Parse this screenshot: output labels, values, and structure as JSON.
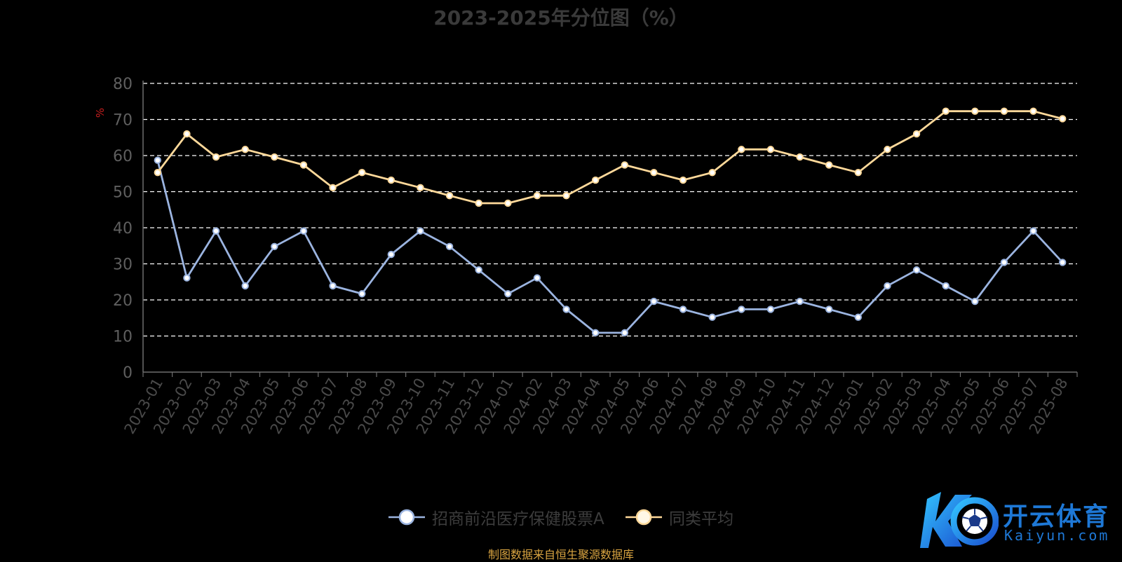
{
  "title": "2023-2025年分位图（%）",
  "source_note": "制图数据来自恒生聚源数据库",
  "watermark": {
    "text": "开云体育",
    "sub": "Kaiyun.com"
  },
  "colors": {
    "fund": "#9bb4e0",
    "avg": "#ffd99a",
    "grid": "#ffffff",
    "axis": "#6e6e6e",
    "unit": "#c81e1e"
  },
  "chart_data": {
    "type": "line",
    "title": "2023-2025年分位图（%）",
    "ylabel": "%",
    "ylim": [
      0,
      80
    ],
    "yticks": [
      0,
      10,
      20,
      30,
      40,
      50,
      60,
      70,
      80
    ],
    "grid": true,
    "legend_position": "bottom-center",
    "categories": [
      "2023-01",
      "2023-02",
      "2023-03",
      "2023-04",
      "2023-05",
      "2023-06",
      "2023-07",
      "2023-08",
      "2023-09",
      "2023-10",
      "2023-11",
      "2023-12",
      "2024-01",
      "2024-02",
      "2024-03",
      "2024-04",
      "2024-05",
      "2024-06",
      "2024-07",
      "2024-08",
      "2024-09",
      "2024-10",
      "2024-11",
      "2024-12",
      "2025-01",
      "2025-02",
      "2025-03",
      "2025-04",
      "2025-05",
      "2025-06",
      "2025-07",
      "2025-08"
    ],
    "series": [
      {
        "name": "招商前沿医疗保健股票A",
        "color": "#9bb4e0",
        "values": [
          58.7,
          26.1,
          39.1,
          23.9,
          34.8,
          39.1,
          23.9,
          21.7,
          32.6,
          39.1,
          34.8,
          28.3,
          21.7,
          26.1,
          17.4,
          10.9,
          10.9,
          19.6,
          17.4,
          15.2,
          17.4,
          17.4,
          19.6,
          17.4,
          15.2,
          23.9,
          28.3,
          23.9,
          19.6,
          30.4,
          39.1,
          30.4
        ]
      },
      {
        "name": "同类平均",
        "color": "#ffd99a",
        "values": [
          55.3,
          66.0,
          59.6,
          61.7,
          59.6,
          57.4,
          51.1,
          55.3,
          53.2,
          51.1,
          48.9,
          46.8,
          46.8,
          48.9,
          48.9,
          53.2,
          57.4,
          55.3,
          53.2,
          55.3,
          61.7,
          61.7,
          59.6,
          57.4,
          55.3,
          61.7,
          66.0,
          72.3,
          72.3,
          72.3,
          72.3,
          70.2
        ]
      }
    ]
  }
}
